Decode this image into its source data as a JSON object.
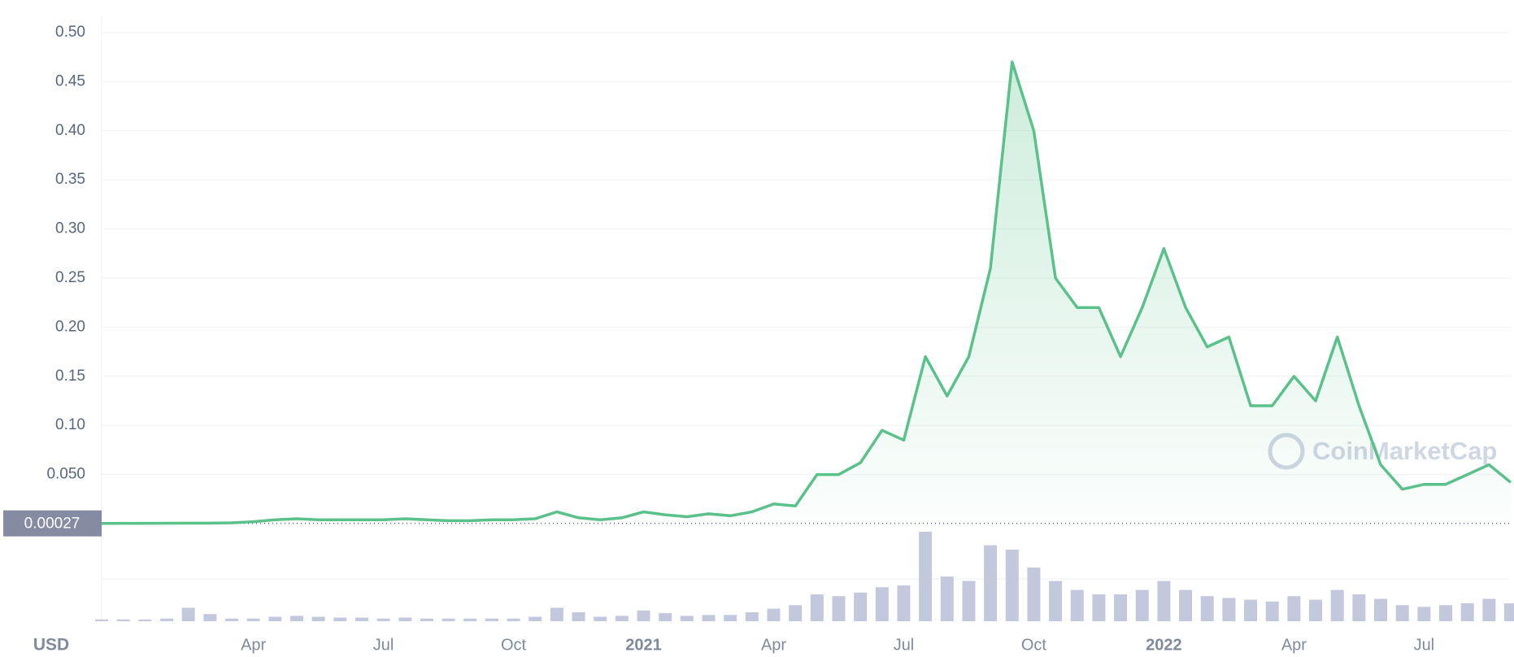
{
  "chart_data": {
    "type": "line",
    "categories": [
      null,
      null,
      null,
      null,
      null,
      null,
      null,
      "Apr",
      null,
      null,
      null,
      null,
      null,
      "Jul",
      null,
      null,
      null,
      null,
      null,
      "Oct",
      null,
      null,
      null,
      null,
      null,
      "2021",
      null,
      null,
      null,
      null,
      null,
      "Apr",
      null,
      null,
      null,
      null,
      null,
      "Jul",
      null,
      null,
      null,
      null,
      null,
      "Oct",
      null,
      null,
      null,
      null,
      null,
      "2022",
      null,
      null,
      null,
      null,
      null,
      "Apr",
      null,
      null,
      null,
      null,
      null,
      "Jul",
      null,
      null,
      null,
      null
    ],
    "series": [
      {
        "name": "Price",
        "color": "#5bc18a",
        "values": [
          0.00027,
          0.0003,
          0.0003,
          0.0004,
          0.0005,
          0.0005,
          0.0008,
          0.002,
          0.004,
          0.005,
          0.004,
          0.004,
          0.004,
          0.004,
          0.005,
          0.004,
          0.003,
          0.003,
          0.004,
          0.004,
          0.005,
          0.012,
          0.006,
          0.004,
          0.006,
          0.012,
          0.009,
          0.007,
          0.01,
          0.008,
          0.012,
          0.02,
          0.018,
          0.05,
          0.05,
          0.062,
          0.095,
          0.085,
          0.17,
          0.13,
          0.17,
          0.26,
          0.47,
          0.4,
          0.25,
          0.22,
          0.22,
          0.17,
          0.22,
          0.28,
          0.22,
          0.18,
          0.19,
          0.12,
          0.12,
          0.15,
          0.125,
          0.19,
          0.12,
          0.06,
          0.035,
          0.04,
          0.04,
          0.05,
          0.06,
          0.042
        ]
      },
      {
        "name": "Volume",
        "color": "#c3c8dc",
        "values": [
          2,
          2,
          2,
          3,
          15,
          8,
          3,
          3,
          5,
          6,
          5,
          4,
          4,
          3,
          4,
          3,
          3,
          3,
          3,
          3,
          5,
          15,
          10,
          5,
          6,
          12,
          9,
          6,
          7,
          7,
          10,
          14,
          18,
          30,
          28,
          32,
          38,
          40,
          100,
          50,
          45,
          85,
          80,
          60,
          45,
          35,
          30,
          30,
          35,
          45,
          35,
          28,
          26,
          24,
          22,
          28,
          24,
          35,
          30,
          25,
          18,
          16,
          18,
          20,
          25,
          20
        ]
      }
    ],
    "ylim": [
      0,
      0.5
    ],
    "yticks": [
      {
        "value": 0.05,
        "label": "0.050"
      },
      {
        "value": 0.1,
        "label": "0.10"
      },
      {
        "value": 0.15,
        "label": "0.15"
      },
      {
        "value": 0.2,
        "label": "0.20"
      },
      {
        "value": 0.25,
        "label": "0.25"
      },
      {
        "value": 0.3,
        "label": "0.30"
      },
      {
        "value": 0.35,
        "label": "0.35"
      },
      {
        "value": 0.4,
        "label": "0.40"
      },
      {
        "value": 0.45,
        "label": "0.45"
      },
      {
        "value": 0.5,
        "label": "0.50"
      }
    ],
    "start_price": 0.00027,
    "currency": "USD",
    "watermark": "CoinMarketCap",
    "grid": true
  }
}
